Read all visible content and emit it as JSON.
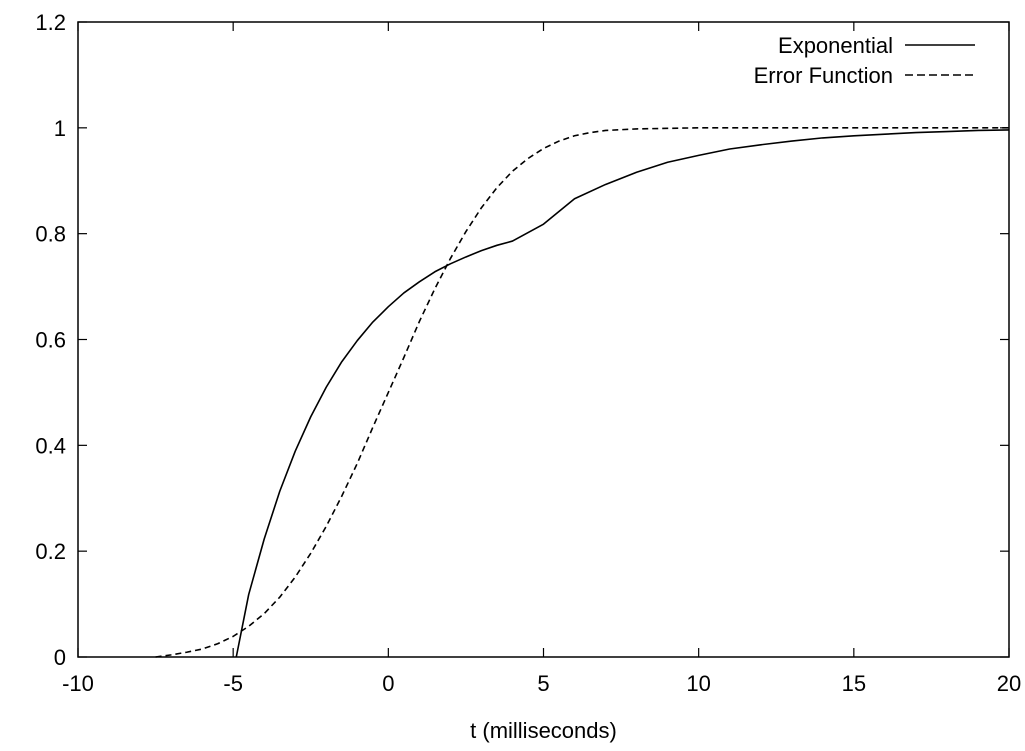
{
  "chart_data": {
    "type": "line",
    "title": "",
    "xlabel": "t (milliseconds)",
    "ylabel": "",
    "xlim": [
      -10,
      20
    ],
    "ylim": [
      0,
      1.2
    ],
    "grid": false,
    "legend_position": "top-right",
    "x_ticks": [
      {
        "value": -10,
        "label": "-10"
      },
      {
        "value": -5,
        "label": "-5"
      },
      {
        "value": 0,
        "label": "0"
      },
      {
        "value": 5,
        "label": "5"
      },
      {
        "value": 10,
        "label": "10"
      },
      {
        "value": 15,
        "label": "15"
      },
      {
        "value": 20,
        "label": "20"
      }
    ],
    "y_ticks": [
      {
        "value": 0,
        "label": "0"
      },
      {
        "value": 0.2,
        "label": "0.2"
      },
      {
        "value": 0.4,
        "label": "0.4"
      },
      {
        "value": 0.6,
        "label": "0.6"
      },
      {
        "value": 0.8,
        "label": "0.8"
      },
      {
        "value": 1,
        "label": "1"
      },
      {
        "value": 1.2,
        "label": "1.2"
      }
    ],
    "series": [
      {
        "name": "Exponential",
        "style": "solid",
        "color": "#000000",
        "x": [
          -4.9,
          -4.5,
          -4,
          -3.5,
          -3,
          -2.5,
          -2,
          -1.5,
          -1,
          -0.5,
          0,
          0.5,
          1,
          1.5,
          2,
          2.5,
          3,
          3.5,
          4,
          5,
          6,
          7,
          8,
          9,
          10,
          11,
          12,
          13,
          14,
          15,
          16,
          17,
          18,
          19,
          20
        ],
        "y": [
          0.0,
          0.118,
          0.223,
          0.313,
          0.389,
          0.454,
          0.51,
          0.558,
          0.598,
          0.633,
          0.662,
          0.688,
          0.709,
          0.728,
          0.743,
          0.756,
          0.768,
          0.778,
          0.786,
          0.818,
          0.866,
          0.893,
          0.916,
          0.935,
          0.948,
          0.96,
          0.968,
          0.975,
          0.981,
          0.985,
          0.988,
          0.991,
          0.993,
          0.995,
          0.996
        ]
      },
      {
        "name": "Error Function",
        "style": "dashed",
        "color": "#000000",
        "x": [
          -7.5,
          -7,
          -6.5,
          -6,
          -5.5,
          -5,
          -4.5,
          -4,
          -3.5,
          -3,
          -2.5,
          -2,
          -1.5,
          -1,
          -0.5,
          0,
          0.5,
          1,
          1.5,
          2,
          2.5,
          3,
          3.5,
          4,
          4.5,
          5,
          5.5,
          6,
          6.5,
          7,
          8,
          9,
          10,
          12,
          14,
          16,
          18,
          20
        ],
        "y": [
          0.0,
          0.004,
          0.009,
          0.015,
          0.025,
          0.039,
          0.058,
          0.082,
          0.113,
          0.151,
          0.196,
          0.247,
          0.304,
          0.366,
          0.434,
          0.5,
          0.566,
          0.634,
          0.696,
          0.753,
          0.804,
          0.849,
          0.887,
          0.918,
          0.942,
          0.961,
          0.975,
          0.985,
          0.991,
          0.995,
          0.998,
          0.999,
          1.0,
          1.0,
          1.0,
          1.0,
          1.0,
          1.0
        ]
      }
    ]
  }
}
